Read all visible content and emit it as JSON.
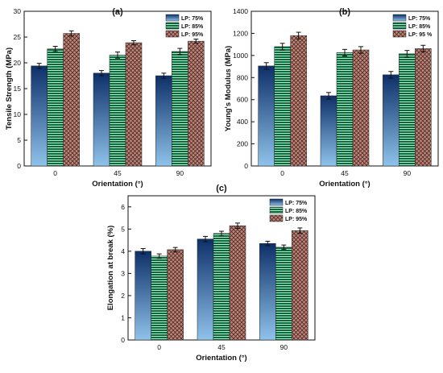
{
  "chart_data": [
    {
      "type": "bar",
      "title": "(a)",
      "xlabel": "Orientation (°)",
      "ylabel": "Tensile Strength (MPa)",
      "categories": [
        "0",
        "45",
        "90"
      ],
      "ylim": [
        0,
        30
      ],
      "yticks": [
        0,
        5,
        10,
        15,
        20,
        25,
        30
      ],
      "legend_position": "top-right",
      "series": [
        {
          "name": "LP: 75%",
          "values": [
            19.4,
            18.0,
            17.5
          ],
          "errors": [
            0.5,
            0.5,
            0.5
          ]
        },
        {
          "name": "LP: 85%",
          "values": [
            22.7,
            21.5,
            22.2
          ],
          "errors": [
            0.5,
            0.6,
            0.6
          ]
        },
        {
          "name": "LP: 95%",
          "values": [
            25.7,
            23.9,
            24.2
          ],
          "errors": [
            0.5,
            0.4,
            0.4
          ]
        }
      ]
    },
    {
      "type": "bar",
      "title": "(b)",
      "xlabel": "Orientation (°)",
      "ylabel": "Young's Modulus (MPa)",
      "categories": [
        "0",
        "45",
        "90"
      ],
      "ylim": [
        0,
        1400
      ],
      "yticks": [
        0,
        200,
        400,
        600,
        800,
        1000,
        1200,
        1400
      ],
      "legend_position": "top-right",
      "series": [
        {
          "name": "LP: 75%",
          "values": [
            905,
            635,
            825
          ],
          "errors": [
            30,
            30,
            30
          ]
        },
        {
          "name": "LP: 85%",
          "values": [
            1080,
            1025,
            1015
          ],
          "errors": [
            30,
            30,
            30
          ]
        },
        {
          "name": "LP: 95 %",
          "values": [
            1180,
            1050,
            1062
          ],
          "errors": [
            30,
            30,
            30
          ]
        }
      ]
    },
    {
      "type": "bar",
      "title": "(c)",
      "xlabel": "Orientation (°)",
      "ylabel": "Elongation at break (%)",
      "categories": [
        "0",
        "45",
        "90"
      ],
      "ylim": [
        0,
        6.5
      ],
      "yticks": [
        0,
        1,
        2,
        3,
        4,
        5,
        6
      ],
      "legend_position": "top-right",
      "series": [
        {
          "name": "LP: 75%",
          "values": [
            4.0,
            4.55,
            4.35
          ],
          "errors": [
            0.12,
            0.12,
            0.1
          ]
        },
        {
          "name": "LP: 85%",
          "values": [
            3.78,
            4.8,
            4.18
          ],
          "errors": [
            0.1,
            0.1,
            0.1
          ]
        },
        {
          "name": "LP: 95%",
          "values": [
            4.07,
            5.15,
            4.93
          ],
          "errors": [
            0.1,
            0.12,
            0.12
          ]
        }
      ]
    }
  ],
  "colors": {
    "series_75_dark": "#0d2f68",
    "series_75_light": "#8fc3ea",
    "series_85_base": "#0a6b3e",
    "series_85_stripe": "#b8e6c8",
    "series_95_base": "#b98a80",
    "series_95_hatch": "#5a2a22"
  }
}
